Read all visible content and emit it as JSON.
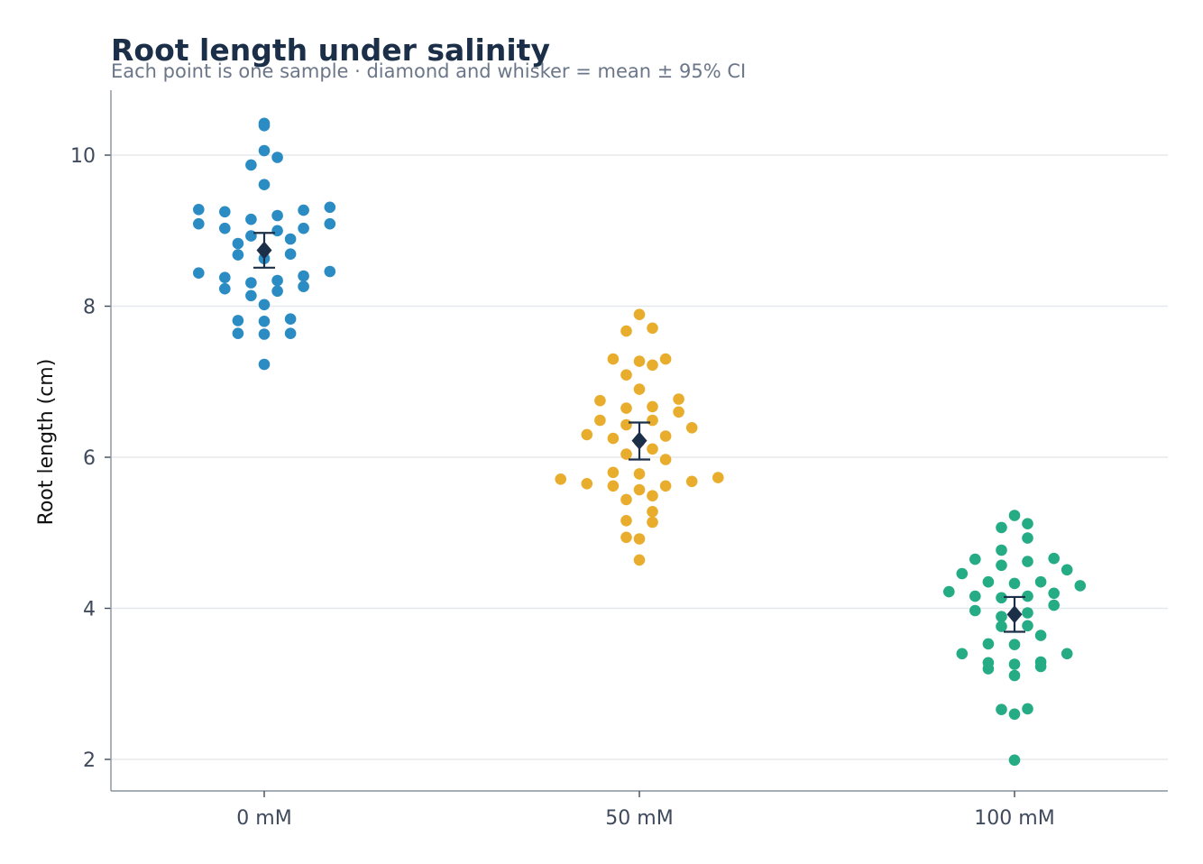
{
  "chart_data": {
    "type": "scatter",
    "title": "Root length under salinity",
    "subtitle": "Each point is one sample · diamond and whisker = mean ± 95% CI",
    "xlabel": "",
    "ylabel": "Root length (cm)",
    "categories": [
      "0 mM",
      "50 mM",
      "100 mM"
    ],
    "ylim": [
      1.6,
      10.85
    ],
    "yticks": [
      2,
      4,
      6,
      8,
      10
    ],
    "grid": "horizontal",
    "colors": {
      "0 mM": "#2b8cc4",
      "50 mM": "#e8ad2c",
      "100 mM": "#25ac85",
      "summary": "#1b2f48"
    },
    "series": [
      {
        "category": "0 mM",
        "values": [
          10.42,
          10.06,
          9.87,
          9.61,
          9.97,
          10.39,
          9.28,
          9.25,
          9.15,
          9.09,
          9.03,
          9.09,
          9.2,
          9.27,
          9.31,
          9.0,
          8.89,
          8.74,
          8.68,
          8.63,
          8.69,
          8.83,
          8.93,
          9.03,
          8.44,
          8.38,
          8.31,
          8.23,
          8.2,
          8.26,
          8.34,
          8.4,
          8.46,
          8.02,
          8.14,
          7.81,
          7.64,
          7.63,
          7.64,
          7.8,
          7.83,
          7.23
        ],
        "mean": 8.74,
        "ci": [
          8.51,
          8.97
        ]
      },
      {
        "category": "50 mM",
        "values": [
          7.89,
          7.67,
          7.3,
          7.27,
          7.3,
          7.71,
          7.22,
          7.09,
          6.77,
          6.67,
          6.6,
          6.49,
          6.65,
          6.75,
          6.9,
          6.43,
          6.3,
          6.25,
          6.11,
          6.04,
          6.21,
          6.28,
          6.39,
          6.49,
          5.8,
          5.73,
          5.68,
          5.62,
          5.62,
          5.65,
          5.71,
          5.78,
          5.97,
          5.49,
          5.28,
          5.14,
          4.92,
          4.94,
          5.16,
          5.44,
          5.57,
          4.64
        ],
        "mean": 6.22,
        "ci": [
          5.97,
          6.46
        ]
      },
      {
        "category": "100 mM",
        "values": [
          5.23,
          5.07,
          4.77,
          4.66,
          4.93,
          5.12,
          4.62,
          4.51,
          4.35,
          4.33,
          4.3,
          4.35,
          4.46,
          4.57,
          4.65,
          4.2,
          4.16,
          4.04,
          3.94,
          3.97,
          4.14,
          4.16,
          4.22,
          3.89,
          3.77,
          3.64,
          3.52,
          3.4,
          3.29,
          3.4,
          3.53,
          3.76,
          3.26,
          3.2,
          3.11,
          3.23,
          3.28,
          2.67,
          2.6,
          2.66,
          1.99
        ],
        "mean": 3.92,
        "ci": [
          3.69,
          4.15
        ]
      }
    ]
  }
}
